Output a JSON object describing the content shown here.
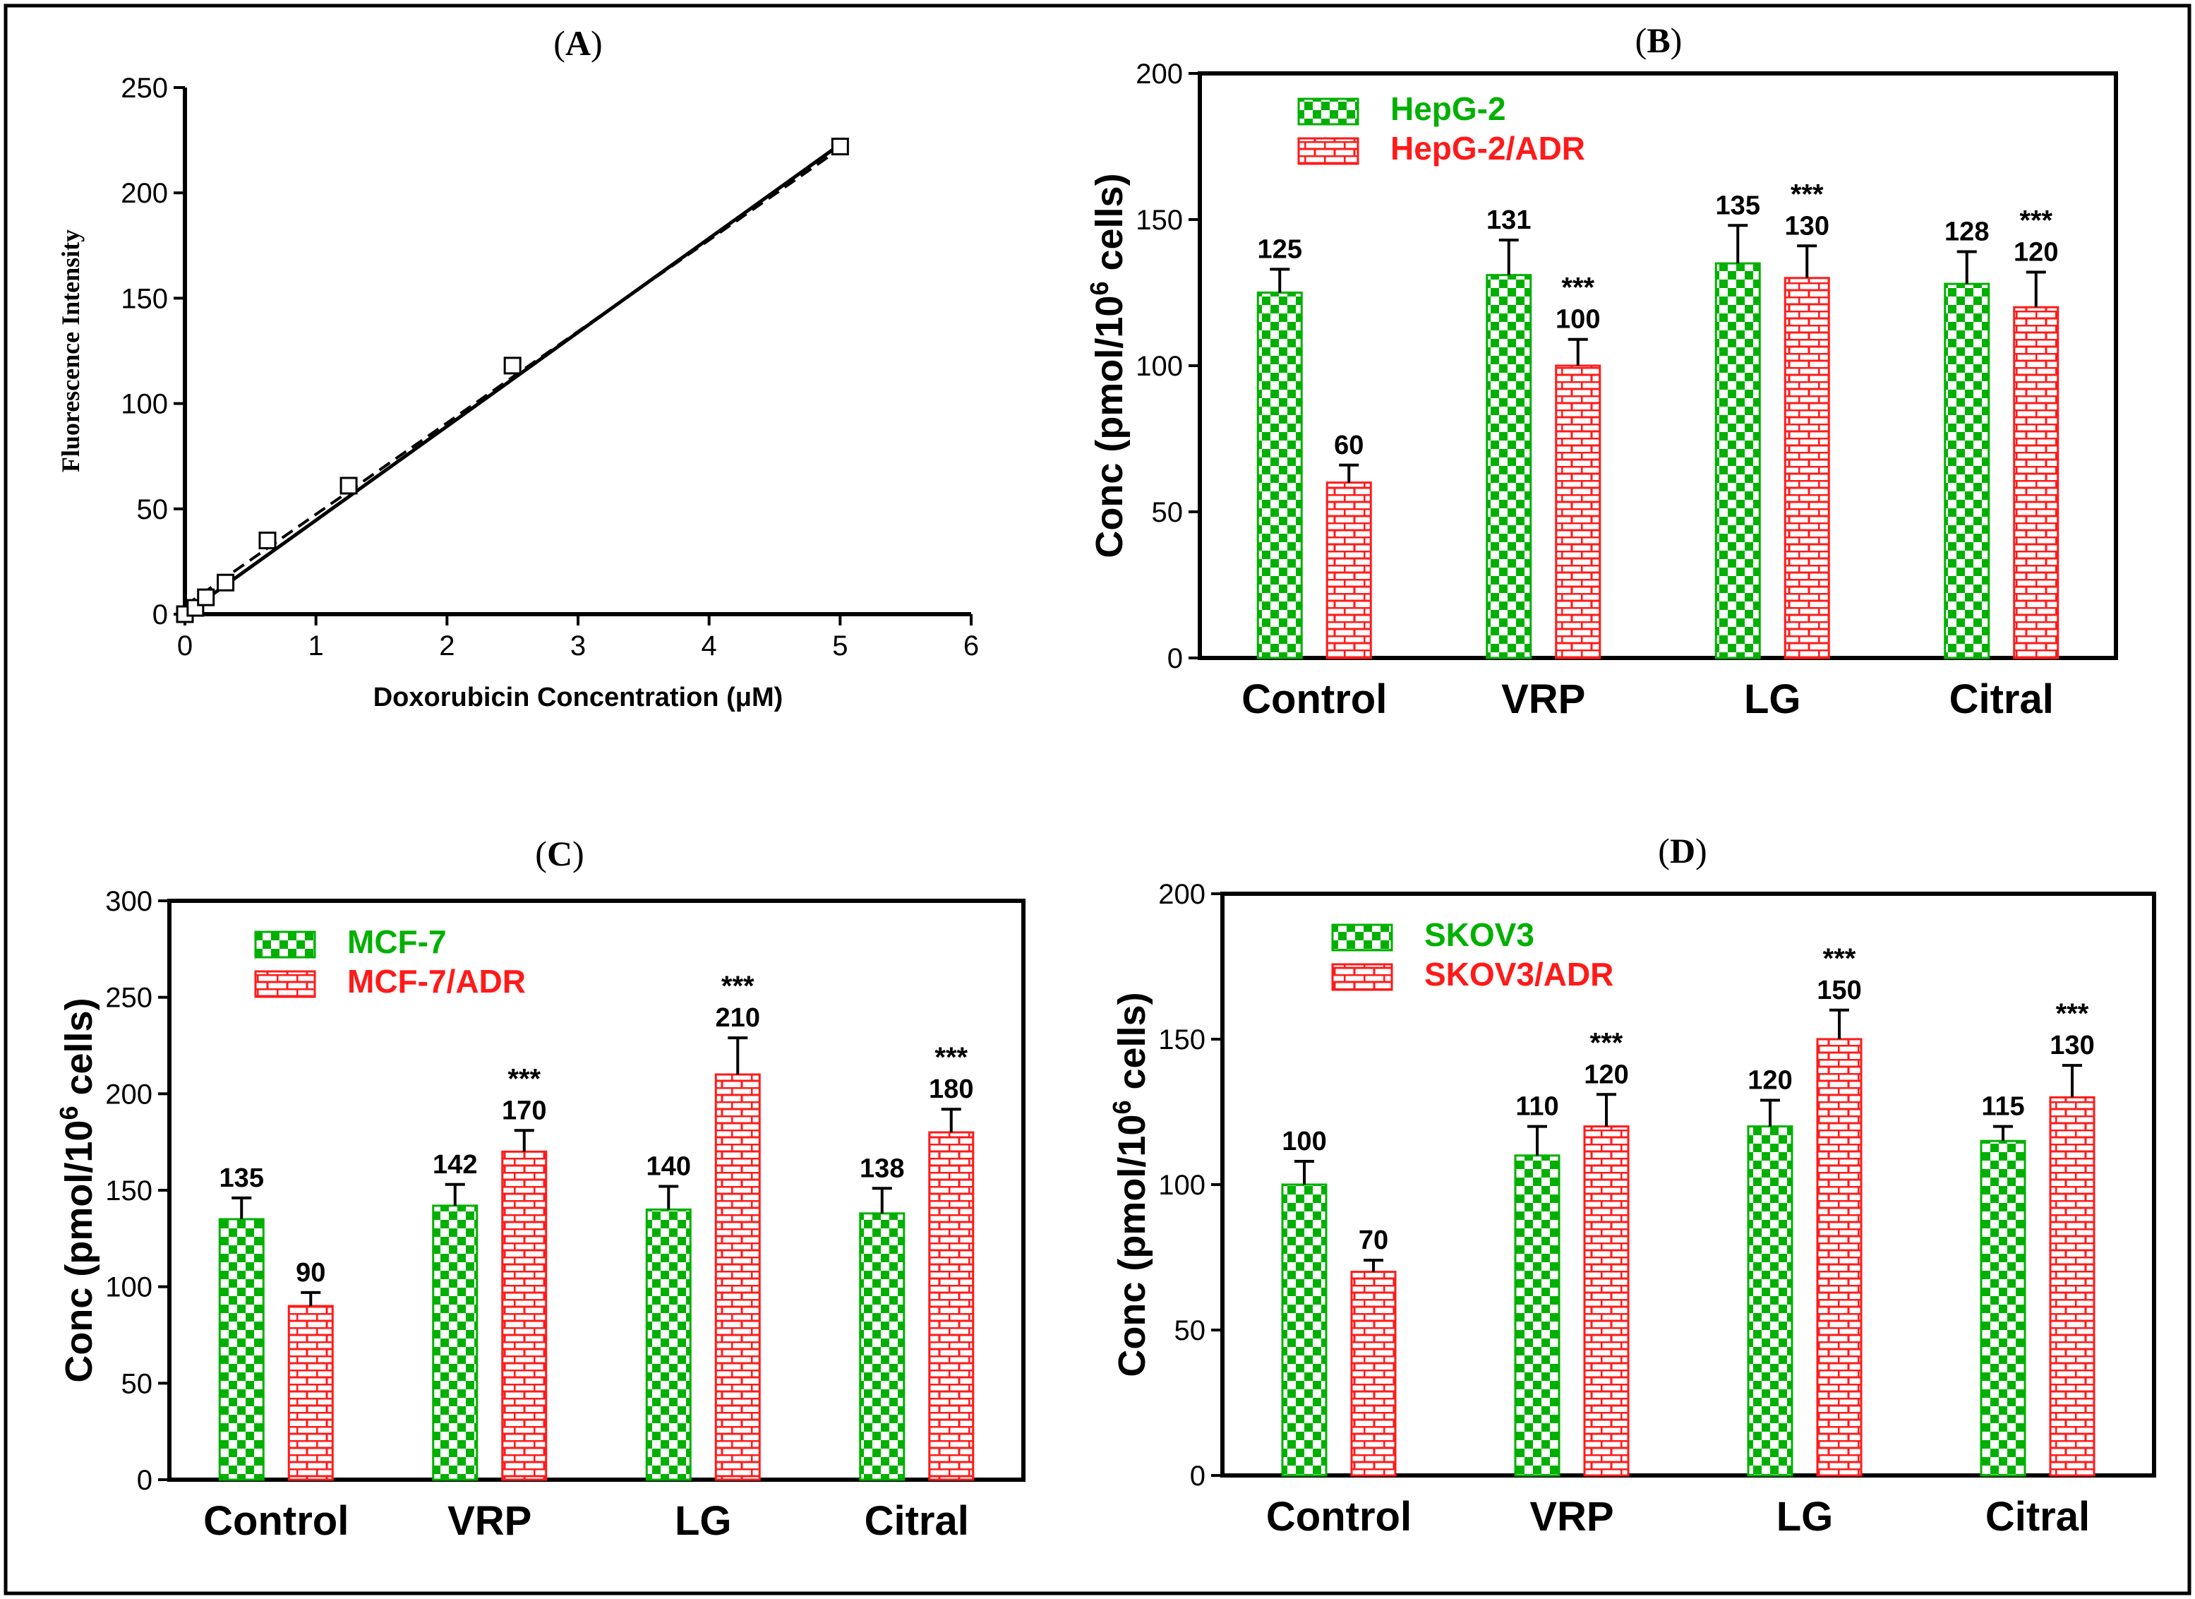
{
  "colors": {
    "green": "#00b000",
    "red": "#ff1a1a",
    "axis": "#000000",
    "frame": "#000000",
    "text": "#000000"
  },
  "chart_data": [
    {
      "panel": "A",
      "type": "scatter",
      "title_letter": "A",
      "xlabel": "Doxorubicin Concentration (μM)",
      "ylabel": "Fluorescence Intensity",
      "xlim": [
        0,
        6
      ],
      "ylim": [
        0,
        250
      ],
      "xticks": [
        "0",
        "1",
        "2",
        "3",
        "4",
        "5",
        "6"
      ],
      "yticks": [
        "0",
        "50",
        "100",
        "150",
        "200",
        "250"
      ],
      "points": [
        {
          "x": 0,
          "y": 0
        },
        {
          "x": 0.08,
          "y": 3
        },
        {
          "x": 0.16,
          "y": 8
        },
        {
          "x": 0.31,
          "y": 15
        },
        {
          "x": 0.63,
          "y": 35
        },
        {
          "x": 1.25,
          "y": 61
        },
        {
          "x": 2.5,
          "y": 118
        },
        {
          "x": 5,
          "y": 222
        }
      ],
      "fit_solid": [
        [
          0,
          0
        ],
        [
          5,
          223
        ]
      ],
      "fit_dashed": [
        [
          0,
          4
        ],
        [
          5,
          221
        ]
      ]
    },
    {
      "panel": "B",
      "type": "bar",
      "title_letter": "B",
      "ylabel": "Conc (pmol/10",
      "ylabel_sup": "6",
      "ylabel_end": " cells)",
      "ylim": [
        0,
        200
      ],
      "yticks": [
        "0",
        "50",
        "100",
        "150",
        "200"
      ],
      "categories": [
        "Control",
        "VRP",
        "LG",
        "Citral"
      ],
      "series": [
        {
          "name": "HepG-2",
          "values": [
            125,
            131,
            135,
            128
          ],
          "errors": [
            8,
            12,
            13,
            11
          ],
          "labels": [
            "125",
            "131",
            "135",
            "128"
          ],
          "sig": [
            "",
            "",
            "",
            ""
          ]
        },
        {
          "name": "HepG-2/ADR",
          "values": [
            60,
            100,
            130,
            120
          ],
          "errors": [
            6,
            9,
            11,
            12
          ],
          "labels": [
            "60",
            "100",
            "130",
            "120"
          ],
          "sig": [
            "",
            "***",
            "***",
            "***"
          ]
        }
      ]
    },
    {
      "panel": "C",
      "type": "bar",
      "title_letter": "C",
      "ylabel": "Conc (pmol/10",
      "ylabel_sup": "6",
      "ylabel_end": " cells)",
      "ylim": [
        0,
        300
      ],
      "yticks": [
        "0",
        "50",
        "100",
        "150",
        "200",
        "250",
        "300"
      ],
      "categories": [
        "Control",
        "VRP",
        "LG",
        "Citral"
      ],
      "series": [
        {
          "name": "MCF-7",
          "values": [
            135,
            142,
            140,
            138
          ],
          "errors": [
            11,
            11,
            12,
            13
          ],
          "labels": [
            "135",
            "142",
            "140",
            "138"
          ],
          "sig": [
            "",
            "",
            "",
            ""
          ]
        },
        {
          "name": "MCF-7/ADR",
          "values": [
            90,
            170,
            210,
            180
          ],
          "errors": [
            7,
            11,
            19,
            12
          ],
          "labels": [
            "90",
            "170",
            "210",
            "180"
          ],
          "sig": [
            "",
            "***",
            "***",
            "***"
          ]
        }
      ]
    },
    {
      "panel": "D",
      "type": "bar",
      "title_letter": "D",
      "ylabel": "Conc (pmol/10",
      "ylabel_sup": "6",
      "ylabel_end": " cells)",
      "ylim": [
        0,
        200
      ],
      "yticks": [
        "0",
        "50",
        "100",
        "150",
        "200"
      ],
      "categories": [
        "Control",
        "VRP",
        "LG",
        "Citral"
      ],
      "series": [
        {
          "name": "SKOV3",
          "values": [
            100,
            110,
            120,
            115
          ],
          "errors": [
            8,
            10,
            9,
            5
          ],
          "labels": [
            "100",
            "110",
            "120",
            "115"
          ],
          "sig": [
            "",
            "",
            "",
            ""
          ]
        },
        {
          "name": "SKOV3/ADR",
          "values": [
            70,
            120,
            150,
            130
          ],
          "errors": [
            4,
            11,
            10,
            11
          ],
          "labels": [
            "70",
            "120",
            "150",
            "130"
          ],
          "sig": [
            "",
            "***",
            "***",
            "***"
          ]
        }
      ]
    }
  ]
}
